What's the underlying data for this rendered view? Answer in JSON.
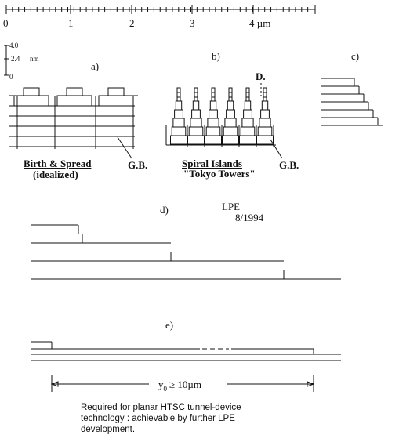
{
  "scale": {
    "ticks": [
      "0",
      "1",
      "2",
      "3",
      "4 µm"
    ]
  },
  "height_scale": {
    "labels": [
      "4.0",
      "2.4",
      "nm",
      "0"
    ]
  },
  "panels": {
    "a": {
      "label": "a)",
      "name": "Birth & Spread",
      "note": "(idealized)",
      "boundary": "G.B."
    },
    "b": {
      "label": "b)",
      "name": "Spiral Islands",
      "note": "\"Tokyo Towers\"",
      "dislocation": "D.",
      "boundary": "G.B."
    },
    "c": {
      "label": "c)"
    },
    "d": {
      "label": "d)",
      "title": "LPE",
      "date": "8/1994"
    },
    "e": {
      "label": "e)",
      "width_symbol": "y",
      "width_subscript": "0",
      "width_rest": "≥ 10µm"
    }
  },
  "caption": {
    "lines": [
      "Required for planar HTSC tunnel-device",
      "technology : achievable by further LPE",
      "development."
    ]
  }
}
